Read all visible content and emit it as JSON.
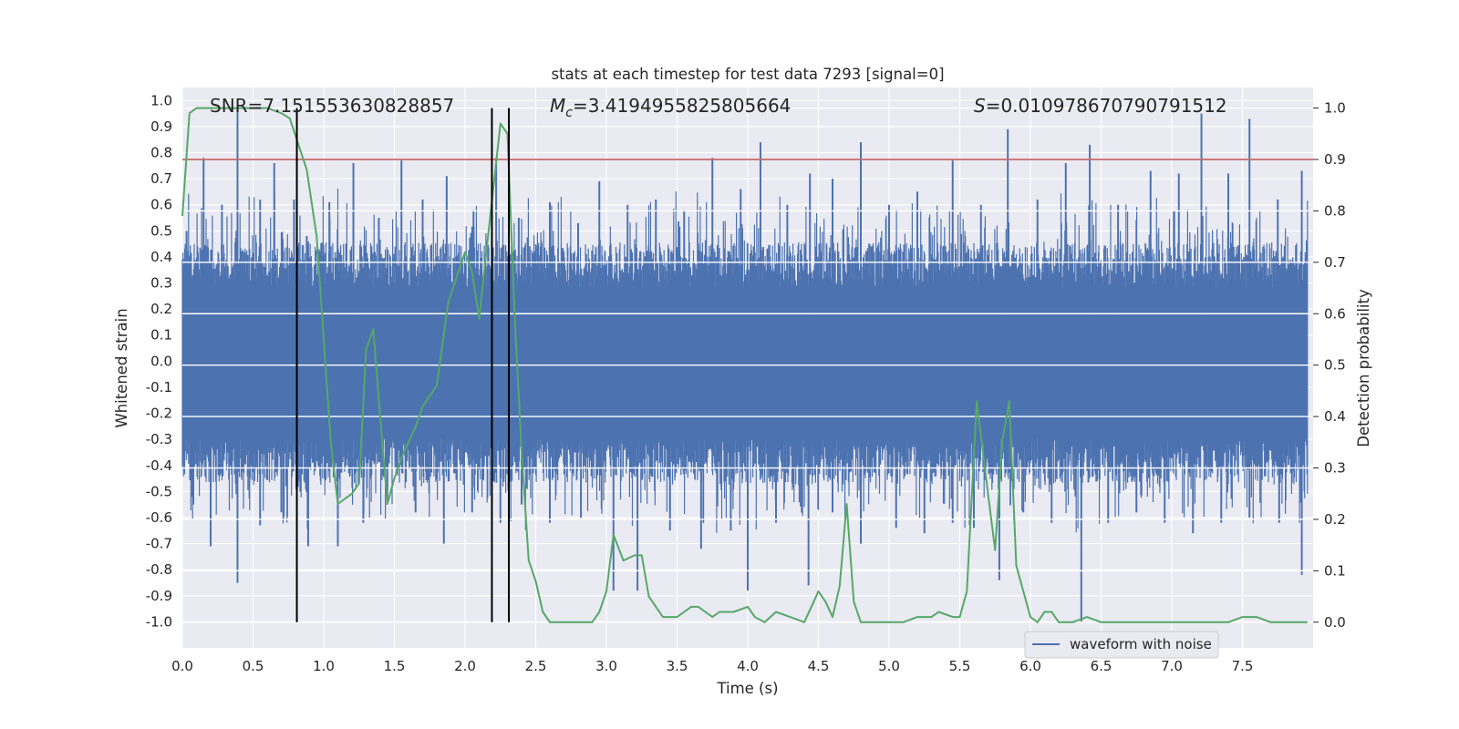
{
  "chart_data": {
    "type": "line",
    "title": "stats at each timestep for test data 7293 [signal=0]",
    "xlabel": "Time (s)",
    "ylabel_left": "Whitened strain",
    "ylabel_right": "Detection probability",
    "xlim": [
      0.0,
      8.0
    ],
    "ylim_left": [
      -1.1,
      1.05
    ],
    "ylim_right": [
      -0.05,
      1.04
    ],
    "x_ticks": [
      "0.0",
      "0.5",
      "1.0",
      "1.5",
      "2.0",
      "2.5",
      "3.0",
      "3.5",
      "4.0",
      "4.5",
      "5.0",
      "5.5",
      "6.0",
      "6.5",
      "7.0",
      "7.5"
    ],
    "y_ticks_left": [
      "1.0",
      "0.9",
      "0.8",
      "0.7",
      "0.6",
      "0.5",
      "0.4",
      "0.3",
      "0.2",
      "0.1",
      "0.0",
      "-0.1",
      "-0.2",
      "-0.3",
      "-0.4",
      "-0.5",
      "-0.6",
      "-0.7",
      "-0.8",
      "-0.9",
      "-1.0"
    ],
    "y_ticks_right": [
      "1.0",
      "0.9",
      "0.8",
      "0.7",
      "0.6",
      "0.5",
      "0.4",
      "0.3",
      "0.2",
      "0.1",
      "0.0"
    ],
    "grid": true,
    "annotations": {
      "snr": "SNR=7.151553630828857",
      "mc_prefix": "M",
      "mc_sub": "c",
      "mc_value": "=3.4194955825805664",
      "s_prefix": "S",
      "s_value": "=0.010978670790791512"
    },
    "threshold": {
      "value": 0.9,
      "axis": "right",
      "color": "#c44e52"
    },
    "vertical_lines": [
      0.81,
      2.19,
      2.31
    ],
    "waveform": {
      "name": "waveform with noise",
      "color": "#4c72b0",
      "core_amplitude": 0.38,
      "peaks": [
        {
          "x": 0.03,
          "y": 0.5
        },
        {
          "x": 0.15,
          "y": 0.78
        },
        {
          "x": 0.28,
          "y": 0.6
        },
        {
          "x": 0.39,
          "y": 0.97
        },
        {
          "x": 0.55,
          "y": 0.62
        },
        {
          "x": 0.65,
          "y": 0.76
        },
        {
          "x": 0.79,
          "y": 0.62
        },
        {
          "x": 0.88,
          "y": 0.48
        },
        {
          "x": 1.04,
          "y": 0.61
        },
        {
          "x": 1.21,
          "y": 0.76
        },
        {
          "x": 1.39,
          "y": 0.55
        },
        {
          "x": 1.55,
          "y": 0.77
        },
        {
          "x": 1.7,
          "y": 0.62
        },
        {
          "x": 1.87,
          "y": 0.71
        },
        {
          "x": 2.06,
          "y": 0.58
        },
        {
          "x": 2.22,
          "y": 0.78
        },
        {
          "x": 2.38,
          "y": 0.55
        },
        {
          "x": 2.6,
          "y": 0.61
        },
        {
          "x": 2.8,
          "y": 0.53
        },
        {
          "x": 2.95,
          "y": 0.69
        },
        {
          "x": 3.15,
          "y": 0.6
        },
        {
          "x": 3.35,
          "y": 0.62
        },
        {
          "x": 3.55,
          "y": 0.58
        },
        {
          "x": 3.75,
          "y": 0.78
        },
        {
          "x": 3.95,
          "y": 0.66
        },
        {
          "x": 4.09,
          "y": 0.84
        },
        {
          "x": 4.28,
          "y": 0.6
        },
        {
          "x": 4.44,
          "y": 0.72
        },
        {
          "x": 4.6,
          "y": 0.7
        },
        {
          "x": 4.8,
          "y": 0.84
        },
        {
          "x": 5.0,
          "y": 0.6
        },
        {
          "x": 5.2,
          "y": 0.65
        },
        {
          "x": 5.45,
          "y": 0.77
        },
        {
          "x": 5.65,
          "y": 0.6
        },
        {
          "x": 5.84,
          "y": 0.89
        },
        {
          "x": 6.05,
          "y": 0.62
        },
        {
          "x": 6.25,
          "y": 0.76
        },
        {
          "x": 6.42,
          "y": 0.83
        },
        {
          "x": 6.62,
          "y": 0.6
        },
        {
          "x": 6.85,
          "y": 0.73
        },
        {
          "x": 7.05,
          "y": 0.72
        },
        {
          "x": 7.21,
          "y": 0.95
        },
        {
          "x": 7.4,
          "y": 0.72
        },
        {
          "x": 7.55,
          "y": 0.93
        },
        {
          "x": 7.75,
          "y": 0.62
        },
        {
          "x": 7.92,
          "y": 0.73
        }
      ],
      "troughs": [
        {
          "x": 0.07,
          "y": -0.52
        },
        {
          "x": 0.2,
          "y": -0.71
        },
        {
          "x": 0.39,
          "y": -0.85
        },
        {
          "x": 0.55,
          "y": -0.63
        },
        {
          "x": 0.7,
          "y": -0.58
        },
        {
          "x": 0.89,
          "y": -0.71
        },
        {
          "x": 1.1,
          "y": -0.71
        },
        {
          "x": 1.28,
          "y": -0.62
        },
        {
          "x": 1.45,
          "y": -0.55
        },
        {
          "x": 1.65,
          "y": -0.58
        },
        {
          "x": 1.85,
          "y": -0.7
        },
        {
          "x": 2.05,
          "y": -0.58
        },
        {
          "x": 2.25,
          "y": -0.62
        },
        {
          "x": 2.4,
          "y": -0.55
        },
        {
          "x": 2.6,
          "y": -0.62
        },
        {
          "x": 2.82,
          "y": -0.6
        },
        {
          "x": 3.05,
          "y": -0.88
        },
        {
          "x": 3.22,
          "y": -0.88
        },
        {
          "x": 3.45,
          "y": -0.65
        },
        {
          "x": 3.67,
          "y": -0.72
        },
        {
          "x": 3.88,
          "y": -0.65
        },
        {
          "x": 4.0,
          "y": -0.88
        },
        {
          "x": 4.2,
          "y": -0.62
        },
        {
          "x": 4.43,
          "y": -0.86
        },
        {
          "x": 4.6,
          "y": -0.58
        },
        {
          "x": 4.8,
          "y": -0.7
        },
        {
          "x": 5.05,
          "y": -0.64
        },
        {
          "x": 5.25,
          "y": -0.66
        },
        {
          "x": 5.45,
          "y": -0.62
        },
        {
          "x": 5.6,
          "y": -0.64
        },
        {
          "x": 5.78,
          "y": -0.84
        },
        {
          "x": 5.95,
          "y": -0.58
        },
        {
          "x": 6.15,
          "y": -0.62
        },
        {
          "x": 6.36,
          "y": -1.0
        },
        {
          "x": 6.55,
          "y": -0.62
        },
        {
          "x": 6.75,
          "y": -0.58
        },
        {
          "x": 6.95,
          "y": -0.62
        },
        {
          "x": 7.15,
          "y": -0.66
        },
        {
          "x": 7.35,
          "y": -0.62
        },
        {
          "x": 7.55,
          "y": -0.6
        },
        {
          "x": 7.76,
          "y": -0.62
        },
        {
          "x": 7.92,
          "y": -0.82
        }
      ]
    },
    "probability": {
      "color": "#55a868",
      "x": [
        0.0,
        0.05,
        0.1,
        0.2,
        0.3,
        0.4,
        0.5,
        0.6,
        0.7,
        0.76,
        0.82,
        0.88,
        0.95,
        1.0,
        1.05,
        1.1,
        1.2,
        1.25,
        1.3,
        1.35,
        1.4,
        1.45,
        1.5,
        1.55,
        1.6,
        1.65,
        1.7,
        1.75,
        1.8,
        1.88,
        1.95,
        2.0,
        2.05,
        2.1,
        2.15,
        2.25,
        2.3,
        2.35,
        2.4,
        2.45,
        2.5,
        2.55,
        2.6,
        2.7,
        2.8,
        2.9,
        2.95,
        3.0,
        3.05,
        3.12,
        3.2,
        3.25,
        3.3,
        3.4,
        3.45,
        3.5,
        3.55,
        3.6,
        3.65,
        3.7,
        3.75,
        3.8,
        3.9,
        4.0,
        4.05,
        4.12,
        4.2,
        4.3,
        4.4,
        4.45,
        4.5,
        4.55,
        4.6,
        4.65,
        4.7,
        4.75,
        4.8,
        4.85,
        4.95,
        5.1,
        5.2,
        5.3,
        5.35,
        5.45,
        5.5,
        5.55,
        5.62,
        5.7,
        5.75,
        5.8,
        5.85,
        5.9,
        6.0,
        6.05,
        6.1,
        6.15,
        6.2,
        6.3,
        6.4,
        6.5,
        6.6,
        6.7,
        6.8,
        6.9,
        7.0,
        7.1,
        7.2,
        7.3,
        7.4,
        7.5,
        7.6,
        7.7,
        7.8,
        7.9,
        7.96
      ],
      "y": [
        0.79,
        0.99,
        1.0,
        1.0,
        1.0,
        1.0,
        1.0,
        1.0,
        0.99,
        0.98,
        0.93,
        0.88,
        0.75,
        0.55,
        0.35,
        0.23,
        0.25,
        0.27,
        0.53,
        0.57,
        0.4,
        0.23,
        0.28,
        0.32,
        0.35,
        0.38,
        0.42,
        0.44,
        0.46,
        0.62,
        0.68,
        0.72,
        0.68,
        0.59,
        0.72,
        0.97,
        0.95,
        0.6,
        0.33,
        0.12,
        0.08,
        0.02,
        0.0,
        0.0,
        0.0,
        0.0,
        0.02,
        0.06,
        0.17,
        0.12,
        0.13,
        0.13,
        0.05,
        0.01,
        0.01,
        0.01,
        0.02,
        0.03,
        0.03,
        0.02,
        0.01,
        0.02,
        0.02,
        0.03,
        0.01,
        0.0,
        0.02,
        0.01,
        0.0,
        0.03,
        0.06,
        0.04,
        0.01,
        0.07,
        0.23,
        0.04,
        0.0,
        0.0,
        0.0,
        0.0,
        0.01,
        0.01,
        0.02,
        0.01,
        0.01,
        0.06,
        0.43,
        0.25,
        0.14,
        0.35,
        0.43,
        0.11,
        0.01,
        0.0,
        0.02,
        0.02,
        0.0,
        0.0,
        0.01,
        0.0,
        0.0,
        0.0,
        0.0,
        0.0,
        0.0,
        0.0,
        0.0,
        0.0,
        0.0,
        0.01,
        0.01,
        0.0,
        0.0,
        0.0,
        0.0
      ]
    },
    "legend": {
      "entries": [
        "waveform with noise"
      ],
      "location": "lower-right"
    }
  }
}
